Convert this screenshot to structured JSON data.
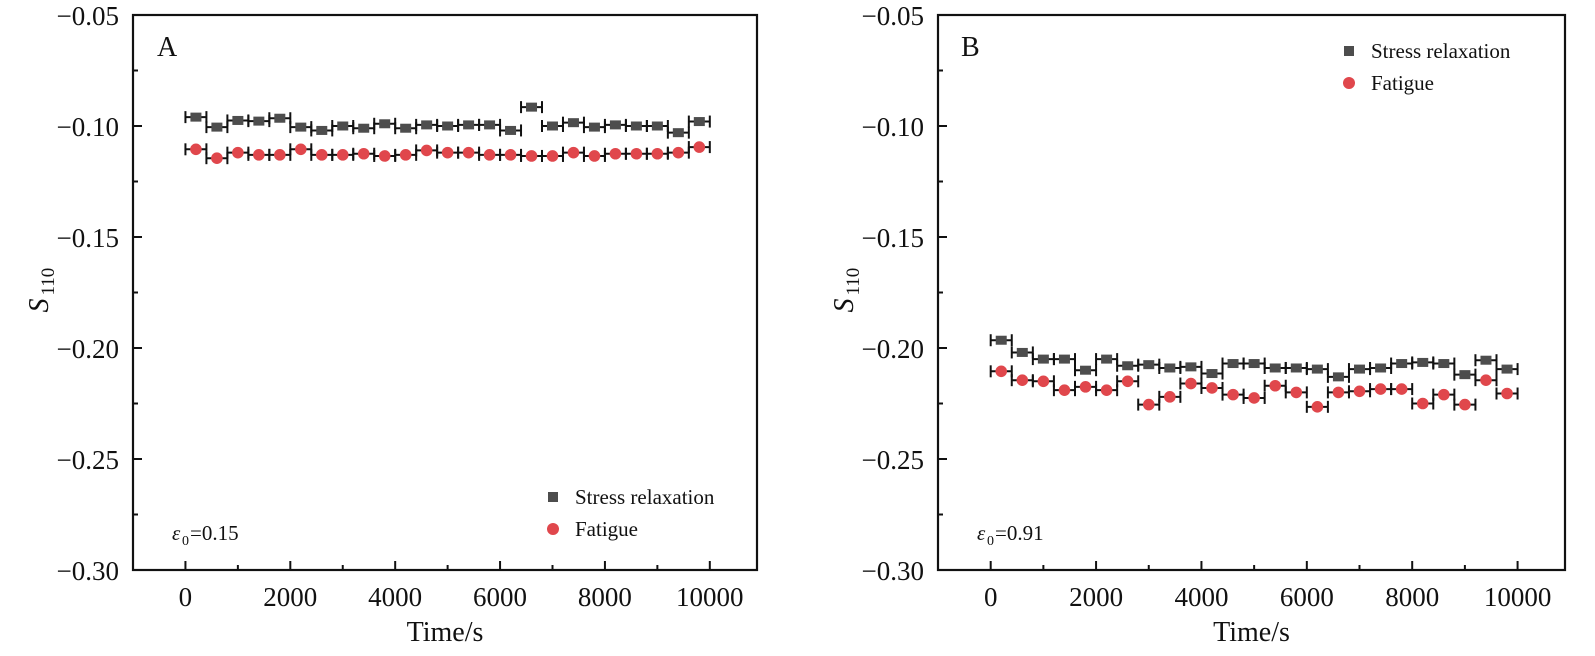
{
  "chart_data": [
    {
      "type": "scatter",
      "panel_label": "A",
      "xlabel": "Time/s",
      "ylabel_main": "S",
      "ylabel_sub": "110",
      "xlim": [
        -1000,
        10900
      ],
      "ylim": [
        -0.3,
        -0.05
      ],
      "xticks": [
        0,
        2000,
        4000,
        6000,
        8000,
        10000
      ],
      "xtick_labels": [
        "0",
        "2000",
        "4000",
        "6000",
        "8000",
        "10000"
      ],
      "yticks": [
        -0.3,
        -0.25,
        -0.2,
        -0.15,
        -0.1,
        -0.05
      ],
      "ytick_labels": [
        "−0.30",
        "−0.25",
        "−0.20",
        "−0.15",
        "−0.10",
        "−0.05"
      ],
      "grid": false,
      "legend_position": "bottom-right",
      "annotation": {
        "symbol": "ε",
        "sub": "0",
        "text": "=0.15"
      },
      "x": [
        200,
        600,
        1000,
        1400,
        1800,
        2200,
        2600,
        3000,
        3400,
        3800,
        4200,
        4600,
        5000,
        5400,
        5800,
        6200,
        6600,
        7000,
        7400,
        7800,
        8200,
        8600,
        9000,
        9400,
        9800
      ],
      "x_error": 200,
      "series": [
        {
          "name": "Stress relaxation",
          "marker": "square",
          "color": "#4d4d4d",
          "values": [
            -0.096,
            -0.1005,
            -0.0975,
            -0.0978,
            -0.0965,
            -0.1005,
            -0.102,
            -0.1,
            -0.101,
            -0.099,
            -0.101,
            -0.0995,
            -0.1,
            -0.0995,
            -0.0995,
            -0.102,
            -0.0915,
            -0.1,
            -0.0985,
            -0.1005,
            -0.0995,
            -0.1,
            -0.1,
            -0.103,
            -0.098
          ]
        },
        {
          "name": "Fatigue",
          "marker": "circle",
          "color": "#e0474c",
          "values": [
            -0.1105,
            -0.1145,
            -0.112,
            -0.113,
            -0.113,
            -0.1105,
            -0.113,
            -0.113,
            -0.1125,
            -0.1135,
            -0.113,
            -0.111,
            -0.112,
            -0.112,
            -0.113,
            -0.113,
            -0.1135,
            -0.1135,
            -0.112,
            -0.1135,
            -0.1125,
            -0.1125,
            -0.1125,
            -0.112,
            -0.1095
          ]
        }
      ]
    },
    {
      "type": "scatter",
      "panel_label": "B",
      "xlabel": "Time/s",
      "ylabel_main": "S",
      "ylabel_sub": "110",
      "xlim": [
        -1000,
        10900
      ],
      "ylim": [
        -0.3,
        -0.05
      ],
      "xticks": [
        0,
        2000,
        4000,
        6000,
        8000,
        10000
      ],
      "xtick_labels": [
        "0",
        "2000",
        "4000",
        "6000",
        "8000",
        "10000"
      ],
      "yticks": [
        -0.3,
        -0.25,
        -0.2,
        -0.15,
        -0.1,
        -0.05
      ],
      "ytick_labels": [
        "−0.30",
        "−0.25",
        "−0.20",
        "−0.15",
        "−0.10",
        "−0.05"
      ],
      "grid": false,
      "legend_position": "top-right",
      "annotation": {
        "symbol": "ε",
        "sub": "0",
        "text": "=0.91"
      },
      "x": [
        200,
        600,
        1000,
        1400,
        1800,
        2200,
        2600,
        3000,
        3400,
        3800,
        4200,
        4600,
        5000,
        5400,
        5800,
        6200,
        6600,
        7000,
        7400,
        7800,
        8200,
        8600,
        9000,
        9400,
        9800
      ],
      "x_error": 200,
      "series": [
        {
          "name": "Stress relaxation",
          "marker": "square",
          "color": "#4d4d4d",
          "values": [
            -0.1965,
            -0.202,
            -0.205,
            -0.205,
            -0.21,
            -0.205,
            -0.208,
            -0.2075,
            -0.209,
            -0.2085,
            -0.2115,
            -0.207,
            -0.207,
            -0.209,
            -0.209,
            -0.2095,
            -0.213,
            -0.2095,
            -0.209,
            -0.207,
            -0.2065,
            -0.207,
            -0.212,
            -0.2055,
            -0.2095
          ]
        },
        {
          "name": "Fatigue",
          "marker": "circle",
          "color": "#e0474c",
          "values": [
            -0.2105,
            -0.2145,
            -0.215,
            -0.219,
            -0.2175,
            -0.219,
            -0.215,
            -0.2255,
            -0.222,
            -0.216,
            -0.218,
            -0.221,
            -0.2225,
            -0.217,
            -0.22,
            -0.2265,
            -0.22,
            -0.2195,
            -0.2185,
            -0.2185,
            -0.225,
            -0.221,
            -0.2255,
            -0.2145,
            -0.2205
          ]
        }
      ]
    }
  ]
}
